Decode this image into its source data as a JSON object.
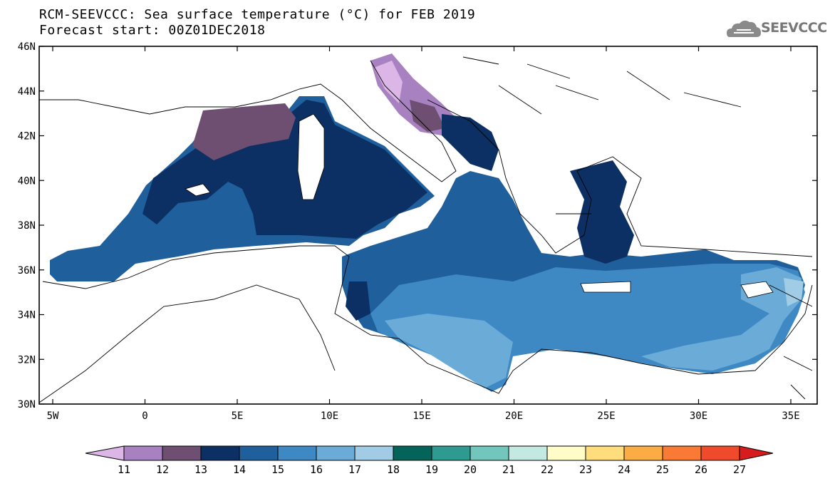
{
  "title_line1": "RCM-SEEVCCC: Sea surface temperature (°C) for FEB 2019",
  "title_line2": "Forecast start: 00Z01DEC2018",
  "logo_text": "SEEVCCC",
  "axes": {
    "lat_labels": [
      "46N",
      "44N",
      "42N",
      "40N",
      "38N",
      "36N",
      "34N",
      "32N",
      "30N"
    ],
    "lon_labels": [
      "5W",
      "0",
      "5E",
      "10E",
      "15E",
      "20E",
      "25E",
      "30E",
      "35E"
    ]
  },
  "colorbar": {
    "levels": [
      "11",
      "12",
      "13",
      "14",
      "15",
      "16",
      "17",
      "18",
      "19",
      "20",
      "21",
      "22",
      "23",
      "24",
      "25",
      "26",
      "27"
    ],
    "colors": [
      "#dcb6e6",
      "#a882c0",
      "#6e4f72",
      "#0c2f64",
      "#1f5f9c",
      "#3e88c4",
      "#6aabd8",
      "#a2cbe6",
      "#04645a",
      "#2f9b90",
      "#72c6bc",
      "#c4e8e2",
      "#fffcc8",
      "#ffdc7c",
      "#fcac44",
      "#f97a34",
      "#f04a2c",
      "#d61c1c"
    ]
  },
  "icons": {
    "logo": "cloud-logo-icon"
  }
}
